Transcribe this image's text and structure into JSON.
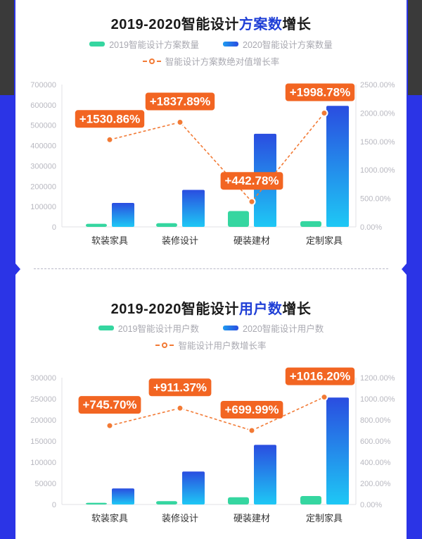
{
  "colors": {
    "background": "#2b34e6",
    "bar_2019": "#35d6a0",
    "bar_2020_top": "#2a4de0",
    "bar_2020_bottom": "#1ec8f5",
    "line": "#f27a35",
    "label_bg": "#f26522",
    "title_highlight": "#1f3fd6"
  },
  "chart_data": [
    {
      "type": "bar",
      "title_pre": "2019-2020智能设计",
      "title_hl": "方案数",
      "title_post": "增长",
      "legend": {
        "s2019": "2019智能设计方案数量",
        "s2020": "2020智能设计方案数量",
        "rate": "智能设计方案数绝对值增长率"
      },
      "categories": [
        "软装家具",
        "装修设计",
        "硬装建材",
        "定制家具"
      ],
      "series": [
        {
          "name": "2019智能设计方案数量",
          "values": [
            15000,
            18000,
            78000,
            28000
          ]
        },
        {
          "name": "2020智能设计方案数量",
          "values": [
            118000,
            182000,
            458000,
            595000
          ]
        },
        {
          "name": "智能设计方案数绝对值增长率",
          "axis": "right",
          "values": [
            1530.86,
            1837.89,
            442.78,
            1998.78
          ]
        }
      ],
      "rate_labels": [
        "+1530.86%",
        "+1837.89%",
        "+442.78%",
        "+1998.78%"
      ],
      "yticks_left": [
        "700000",
        "600000",
        "500000",
        "400000",
        "300000",
        "200000",
        "100000",
        "0"
      ],
      "yticks_right": [
        "2500.00%",
        "2000.00%",
        "1500.00%",
        "1000.00%",
        "500.00%",
        "0.00%"
      ],
      "ylim_left": [
        0,
        700000
      ],
      "ylim_right": [
        0,
        2500
      ],
      "grid": false,
      "legend_position": "top"
    },
    {
      "type": "bar",
      "title_pre": "2019-2020智能设计",
      "title_hl": "用户数",
      "title_post": "增长",
      "legend": {
        "s2019": "2019智能设计用户数",
        "s2020": "2020智能设计用户数",
        "rate": "智能设计用户数增长率"
      },
      "categories": [
        "软装家具",
        "装修设计",
        "硬装建材",
        "定制家具"
      ],
      "series": [
        {
          "name": "2019智能设计用户数",
          "values": [
            4000,
            8000,
            17000,
            20000
          ]
        },
        {
          "name": "2020智能设计用户数",
          "values": [
            38000,
            78000,
            141000,
            253000
          ]
        },
        {
          "name": "智能设计用户数增长率",
          "axis": "right",
          "values": [
            745.7,
            911.37,
            699.99,
            1016.2
          ]
        }
      ],
      "rate_labels": [
        "+745.70%",
        "+911.37%",
        "+699.99%",
        "+1016.20%"
      ],
      "yticks_left": [
        "300000",
        "250000",
        "200000",
        "150000",
        "100000",
        "50000",
        "0"
      ],
      "yticks_right": [
        "1200.00%",
        "1000.00%",
        "800.00%",
        "600.00%",
        "400.00%",
        "200.00%",
        "0.00%"
      ],
      "ylim_left": [
        0,
        300000
      ],
      "ylim_right": [
        0,
        1200
      ],
      "grid": false,
      "legend_position": "top"
    }
  ]
}
